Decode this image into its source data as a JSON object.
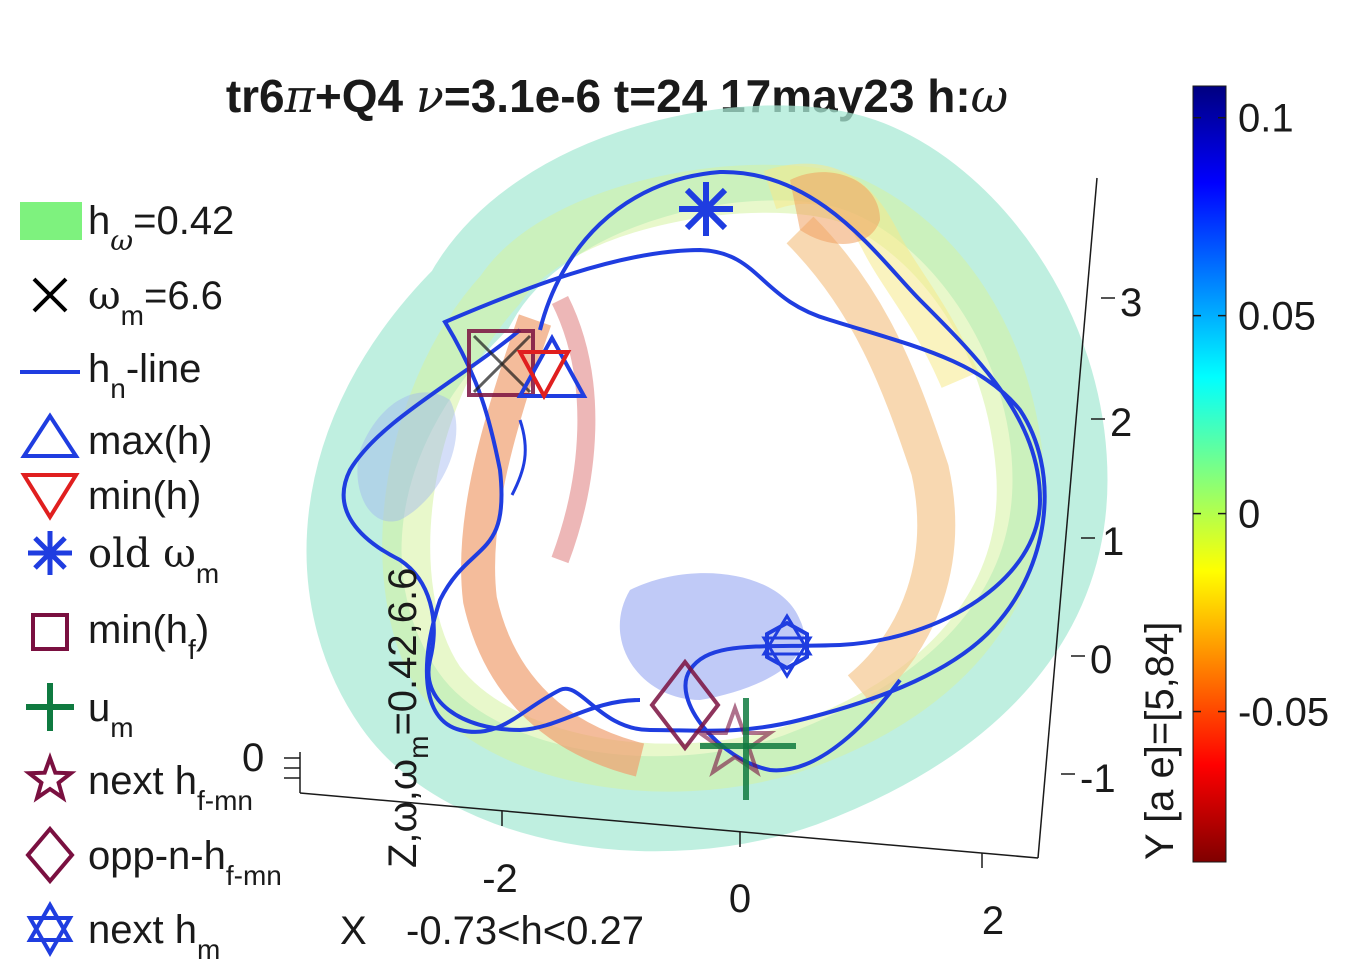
{
  "chart_data": {
    "type": "isosurface-3d",
    "title": {
      "pre": "tr6",
      "pi": "π",
      "mid": "+Q4 ",
      "nu": "ν",
      "post": "=3.1e-6 t=24 17may23 h:",
      "omega": "ω"
    },
    "axes": {
      "x": {
        "label": "X",
        "range_text": "-0.73<h<0.27",
        "ticks": [
          "-2",
          "0",
          "2"
        ],
        "values": [
          -2,
          0,
          2
        ]
      },
      "y": {
        "label": "Y [a e]=[5,84]",
        "ticks": [
          "-1",
          "0",
          "1",
          "2",
          "3"
        ],
        "values": [
          -1,
          0,
          1,
          2,
          3
        ]
      },
      "z": {
        "label_main": "Z,ω,ω",
        "label_sub": "m",
        "label_tail": "=0.42,6.6",
        "ticks": [
          "0"
        ],
        "values": [
          0
        ]
      }
    },
    "colorbar": {
      "ticks": [
        "0.1",
        "0.05",
        "0",
        "-0.05"
      ],
      "values": [
        0.1,
        0.05,
        0,
        -0.05
      ],
      "min": -0.088,
      "max": 0.108,
      "colormap": [
        "#800000",
        "#ff0000",
        "#ff8000",
        "#ffff00",
        "#80ff80",
        "#00ffff",
        "#0080ff",
        "#0000ff",
        "#000080"
      ]
    },
    "legend": [
      {
        "marker": "green-patch",
        "color": "#7ef27e",
        "label": "h",
        "sub": "ω",
        "tail": "=0.42"
      },
      {
        "marker": "x-cross",
        "color": "#000000",
        "label": "ω",
        "sub": "m",
        "tail": "=6.6"
      },
      {
        "marker": "line",
        "color": "#1f3de0",
        "label": "h",
        "sub": "n",
        "tail": "-line"
      },
      {
        "marker": "triangle-up",
        "color": "#1f3de0",
        "label": "max(h)",
        "sub": "",
        "tail": ""
      },
      {
        "marker": "triangle-down",
        "color": "#e01f1f",
        "label": "min(h)",
        "sub": "",
        "tail": ""
      },
      {
        "marker": "asterisk",
        "color": "#1f3de0",
        "label": "old ω",
        "sub": "m",
        "tail": ""
      },
      {
        "marker": "square",
        "color": "#7a1040",
        "label": "min(h",
        "sub": "f",
        "tail": ")"
      },
      {
        "marker": "plus",
        "color": "#0f7a40",
        "label": "u",
        "sub": "m",
        "tail": ""
      },
      {
        "marker": "star",
        "color": "#7a1040",
        "label": "next h",
        "sub": "f-mn",
        "tail": ""
      },
      {
        "marker": "diamond",
        "color": "#7a1040",
        "label": "opp-n-h",
        "sub": "f-mn",
        "tail": ""
      },
      {
        "marker": "hexagram",
        "color": "#1f3de0",
        "label": "next h",
        "sub": "m",
        "tail": ""
      }
    ]
  }
}
